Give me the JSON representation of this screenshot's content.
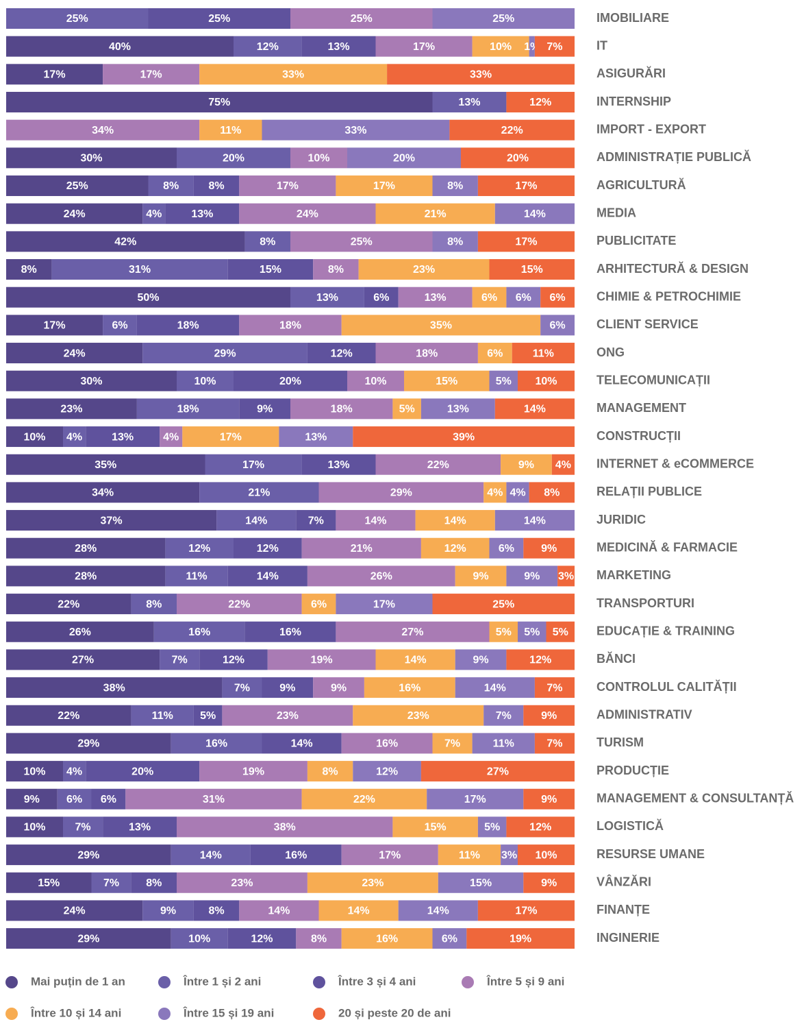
{
  "chart_data": {
    "type": "stacked-bar-horizontal",
    "categories": [
      "IMOBILIARE",
      "IT",
      "ASIGURĂRI",
      "INTERNSHIP",
      "IMPORT - EXPORT",
      "ADMINISTRAȚIE PUBLICĂ",
      "AGRICULTURĂ",
      "MEDIA",
      "PUBLICITATE",
      "ARHITECTURĂ & DESIGN",
      "CHIMIE & PETROCHIMIE",
      "CLIENT SERVICE",
      "ONG",
      "TELECOMUNICAȚII",
      "MANAGEMENT",
      "CONSTRUCȚII",
      "INTERNET & eCOMMERCE",
      "RELAȚII PUBLICE",
      "JURIDIC",
      "MEDICINĂ & FARMACIE",
      "MARKETING",
      "TRANSPORTURI",
      "EDUCAȚIE & TRAINING",
      "BĂNCI",
      "CONTROLUL CALITĂȚII",
      "ADMINISTRATIV",
      "TURISM",
      "PRODUCȚIE",
      "MANAGEMENT & CONSULTANȚĂ",
      "LOGISTICĂ",
      "RESURSE UMANE",
      "VÂNZĂRI",
      "FINANȚE",
      "INGINERIE"
    ],
    "xlim": [
      0,
      100
    ],
    "series": [
      {
        "name": "Mai puțin de 1 an",
        "color": "#55478a",
        "values": [
          0,
          40,
          17,
          75,
          0,
          30,
          25,
          24,
          42,
          8,
          50,
          17,
          24,
          30,
          23,
          10,
          35,
          34,
          37,
          28,
          28,
          22,
          26,
          27,
          38,
          22,
          29,
          10,
          9,
          10,
          29,
          15,
          24,
          29
        ],
        "value_labels": [
          null,
          "40%",
          "17%",
          "75%",
          null,
          "30%",
          "25%",
          "24%",
          "42%",
          "8%",
          "50%",
          "17%",
          "24%",
          "30%",
          "23%",
          "10%",
          "35%",
          "34%",
          "37%",
          "28%",
          "28%",
          "22%",
          "26%",
          "27%",
          "38%",
          "22%",
          "29%",
          "10%",
          "9%",
          "10%",
          "29%",
          "15%",
          "24%",
          "29%"
        ]
      },
      {
        "name": "Între 1 și 2 ani",
        "color": "#6a5fa8",
        "values": [
          25,
          12,
          0,
          13,
          0,
          20,
          8,
          4,
          8,
          31,
          13,
          6,
          29,
          10,
          18,
          4,
          17,
          21,
          14,
          12,
          11,
          8,
          16,
          7,
          7,
          11,
          16,
          4,
          6,
          7,
          14,
          7,
          9,
          10
        ],
        "value_labels": [
          "25%",
          "12%",
          null,
          "13%",
          null,
          "20%",
          "8%",
          "4%",
          "8%",
          "31%",
          "13%",
          "6%",
          "29%",
          "10%",
          "18%",
          "4%",
          "17%",
          "21%",
          "14%",
          "12%",
          "11%",
          "8%",
          "16%",
          "7%",
          "7%",
          "11%",
          "16%",
          "4%",
          "6%",
          "7%",
          "14%",
          "7%",
          "9%",
          "10%"
        ]
      },
      {
        "name": "Între 3 și 4 ani",
        "color": "#5f529d",
        "values": [
          25,
          13,
          0,
          0,
          0,
          0,
          8,
          13,
          0,
          15,
          6,
          18,
          12,
          20,
          9,
          13,
          13,
          0,
          7,
          12,
          14,
          0,
          16,
          12,
          9,
          5,
          14,
          20,
          6,
          13,
          16,
          8,
          8,
          12
        ],
        "value_labels": [
          "25%",
          "13%",
          null,
          null,
          null,
          null,
          "8%",
          "13%",
          null,
          "15%",
          "6%",
          "18%",
          "12%",
          "20%",
          "9%",
          "13%",
          "13%",
          null,
          "7%",
          "12%",
          "14%",
          null,
          "16%",
          "12%",
          "9%",
          "5%",
          "14%",
          "20%",
          "6%",
          "13%",
          "16%",
          "8%",
          "8%",
          "12%"
        ]
      },
      {
        "name": "Între 5 și 9 ani",
        "color": "#a97bb4",
        "values": [
          25,
          17,
          17,
          0,
          34,
          10,
          17,
          24,
          25,
          8,
          13,
          18,
          18,
          10,
          18,
          4,
          22,
          29,
          14,
          21,
          26,
          22,
          27,
          19,
          9,
          23,
          16,
          19,
          31,
          38,
          17,
          23,
          14,
          8
        ],
        "value_labels": [
          "25%",
          "17%",
          "17%",
          null,
          "34%",
          "10%",
          "17%",
          "24%",
          "25%",
          "8%",
          "13%",
          "18%",
          "18%",
          "10%",
          "18%",
          "4%",
          "22%",
          "29%",
          "14%",
          "21%",
          "26%",
          "22%",
          "27%",
          "19%",
          "9%",
          "23%",
          "16%",
          "19%",
          "31%",
          "38%",
          "17%",
          "23%",
          "14%",
          "8%"
        ]
      },
      {
        "name": "Între 10 și 14 ani",
        "color": "#f7ac52",
        "values": [
          0,
          10,
          33,
          0,
          11,
          0,
          17,
          21,
          0,
          23,
          6,
          35,
          6,
          15,
          5,
          17,
          9,
          4,
          14,
          12,
          9,
          6,
          5,
          14,
          16,
          23,
          7,
          8,
          22,
          15,
          11,
          23,
          14,
          16
        ],
        "value_labels": [
          null,
          "10%",
          "33%",
          null,
          "11%",
          null,
          "17%",
          "21%",
          null,
          "23%",
          "6%",
          "35%",
          "6%",
          "15%",
          "5%",
          "17%",
          "9%",
          "4%",
          "14%",
          "12%",
          "9%",
          "6%",
          "5%",
          "14%",
          "16%",
          "23%",
          "7%",
          "8%",
          "22%",
          "15%",
          "11%",
          "23%",
          "14%",
          "16%"
        ]
      },
      {
        "name": "Între 15 și 19 ani",
        "color": "#8a78bc",
        "values": [
          25,
          1,
          0,
          0,
          33,
          20,
          8,
          14,
          8,
          0,
          6,
          6,
          0,
          5,
          13,
          13,
          0,
          4,
          14,
          6,
          9,
          17,
          5,
          9,
          14,
          7,
          11,
          12,
          17,
          5,
          3,
          15,
          14,
          6
        ],
        "value_labels": [
          "25%",
          "1%",
          null,
          null,
          "33%",
          "20%",
          "8%",
          "14%",
          "8%",
          null,
          "6%",
          "6%",
          null,
          "5%",
          "13%",
          "13%",
          null,
          "4%",
          "14%",
          "6%",
          "9%",
          "17%",
          "5%",
          "9%",
          "14%",
          "7%",
          "11%",
          "12%",
          "17%",
          "5%",
          "3%",
          "15%",
          "14%",
          "6%"
        ]
      },
      {
        "name": "20 și peste 20 de ani",
        "color": "#ef673b",
        "values": [
          0,
          7,
          33,
          12,
          22,
          20,
          17,
          0,
          17,
          15,
          6,
          0,
          11,
          10,
          14,
          39,
          4,
          8,
          0,
          9,
          3,
          25,
          5,
          12,
          7,
          9,
          7,
          27,
          9,
          12,
          10,
          9,
          17,
          19
        ],
        "value_labels": [
          null,
          "7%",
          "33%",
          "12%",
          "22%",
          "20%",
          "17%",
          null,
          "17%",
          "15%",
          "6%",
          null,
          "11%",
          "10%",
          "14%",
          "39%",
          "4%",
          "8%",
          null,
          "9%",
          "3%",
          "25%",
          "5%",
          "12%",
          "7%",
          "9%",
          "7%",
          "27%",
          "9%",
          "12%",
          "10%",
          "9%",
          "17%",
          "19%"
        ]
      }
    ]
  }
}
